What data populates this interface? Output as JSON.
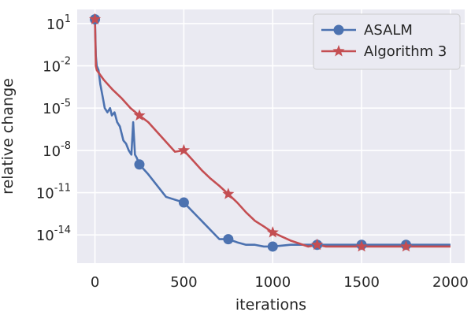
{
  "chart_data": {
    "type": "line",
    "xlabel": "iterations",
    "ylabel": "relative change",
    "yscale": "log",
    "xlim": [
      -100,
      2080
    ],
    "ylim": [
      1e-16,
      100.0
    ],
    "x_ticks": [
      0,
      500,
      1000,
      1500,
      2000
    ],
    "y_ticks": [
      {
        "value": 10,
        "base": "10",
        "exp": "1"
      },
      {
        "value": 0.01,
        "base": "10",
        "exp": "-2"
      },
      {
        "value": 1e-05,
        "base": "10",
        "exp": "-5"
      },
      {
        "value": 1e-08,
        "base": "10",
        "exp": "-8"
      },
      {
        "value": 1e-11,
        "base": "10",
        "exp": "-11"
      },
      {
        "value": 1e-14,
        "base": "10",
        "exp": "-14"
      }
    ],
    "grid": true,
    "legend": "top-right",
    "series": [
      {
        "name": "ASALM",
        "color": "#4c72b0",
        "marker": "circle",
        "x": [
          0,
          5,
          10,
          20,
          30,
          45,
          55,
          70,
          85,
          95,
          110,
          125,
          140,
          160,
          175,
          190,
          205,
          215,
          225,
          235,
          250,
          300,
          400,
          500,
          600,
          700,
          750,
          800,
          850,
          900,
          950,
          1000,
          1100,
          1200,
          1250,
          1300,
          1400,
          1500,
          1600,
          1700,
          1750,
          1800,
          1900,
          2000
        ],
        "y": [
          20,
          0.05,
          0.01,
          0.005,
          0.0005,
          5e-05,
          1e-05,
          5e-06,
          1e-05,
          3e-06,
          5e-06,
          1e-06,
          5e-07,
          5e-08,
          3e-08,
          1e-08,
          5e-09,
          1e-06,
          5e-09,
          3e-09,
          1e-09,
          2e-10,
          5e-12,
          2e-12,
          1e-13,
          5e-15,
          5e-15,
          3e-15,
          2e-15,
          2e-15,
          1.5e-15,
          1.5e-15,
          2e-15,
          2e-15,
          2e-15,
          2e-15,
          2e-15,
          2e-15,
          2e-15,
          2e-15,
          2e-15,
          2e-15,
          2e-15,
          2e-15
        ],
        "marker_x": [
          0,
          250,
          500,
          750,
          1000,
          1250,
          1500,
          1750
        ],
        "marker_y": [
          20,
          1e-09,
          2e-12,
          5e-15,
          1.5e-15,
          2e-15,
          2e-15,
          2e-15
        ]
      },
      {
        "name": "Algorithm 3",
        "color": "#c44e52",
        "marker": "star",
        "x": [
          0,
          5,
          10,
          50,
          100,
          150,
          200,
          250,
          300,
          350,
          400,
          450,
          500,
          550,
          600,
          650,
          700,
          750,
          800,
          850,
          900,
          950,
          1000,
          1100,
          1200,
          1250,
          1300,
          1400,
          1500,
          1600,
          1700,
          1750,
          1800,
          1900,
          2000
        ],
        "y": [
          20,
          0.01,
          0.005,
          0.001,
          0.0002,
          5e-05,
          1e-05,
          3e-06,
          1e-06,
          2e-07,
          4e-08,
          8e-09,
          1e-08,
          2e-09,
          4e-10,
          1e-10,
          3e-11,
          8e-12,
          2e-12,
          4e-13,
          1e-13,
          4e-14,
          1.5e-14,
          4e-15,
          1.5e-15,
          2e-15,
          1.5e-15,
          1.5e-15,
          1.5e-15,
          1.5e-15,
          1.5e-15,
          1.5e-15,
          1.5e-15,
          1.5e-15,
          1.5e-15
        ],
        "marker_x": [
          0,
          250,
          500,
          750,
          1000,
          1250,
          1500,
          1750
        ],
        "marker_y": [
          20,
          3e-06,
          1e-08,
          8e-12,
          1.5e-14,
          2e-15,
          1.5e-15,
          1.5e-15
        ]
      }
    ]
  }
}
